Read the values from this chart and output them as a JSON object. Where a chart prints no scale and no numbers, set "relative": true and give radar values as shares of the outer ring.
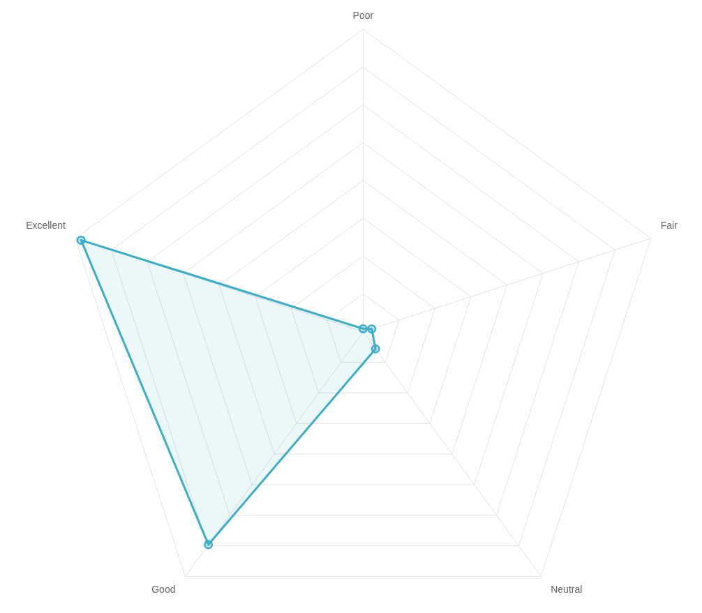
{
  "chart_data": {
    "type": "radar",
    "relative": true,
    "grid": true,
    "marker": "circle",
    "categories": [
      "Poor",
      "Fair",
      "Neutral",
      "Good",
      "Excellent"
    ],
    "series": [
      {
        "color": "#3aaec6",
        "values": [
          0.01,
          0.03,
          0.07,
          0.87,
          0.98
        ]
      }
    ]
  }
}
